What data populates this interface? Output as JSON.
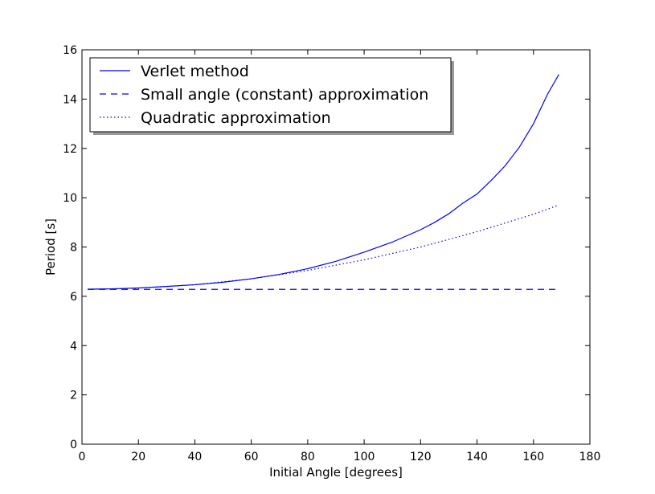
{
  "chart_data": {
    "type": "line",
    "title": "",
    "xlabel": "Initial Angle [degrees]",
    "ylabel": "Period [s]",
    "xlim": [
      0,
      180
    ],
    "ylim": [
      0,
      16
    ],
    "xticks": [
      0,
      20,
      40,
      60,
      80,
      100,
      120,
      140,
      160,
      180
    ],
    "yticks": [
      0,
      2,
      4,
      6,
      8,
      10,
      12,
      14,
      16
    ],
    "grid": false,
    "legend_position": "upper-left",
    "series": [
      {
        "name": "Verlet method",
        "style": "solid",
        "color": "#0000ff",
        "x": [
          2,
          10,
          20,
          30,
          40,
          50,
          60,
          70,
          80,
          90,
          100,
          110,
          120,
          125,
          130,
          135,
          140,
          145,
          150,
          155,
          160,
          165,
          169
        ],
        "y": [
          6.29,
          6.3,
          6.34,
          6.4,
          6.47,
          6.57,
          6.71,
          6.89,
          7.12,
          7.42,
          7.79,
          8.2,
          8.7,
          9.0,
          9.35,
          9.78,
          10.15,
          10.7,
          11.3,
          12.05,
          13.0,
          14.2,
          15.0
        ]
      },
      {
        "name": "Small angle (constant) approximation",
        "style": "dashed",
        "color": "#0000ff",
        "x": [
          2,
          169
        ],
        "y": [
          6.28,
          6.28
        ]
      },
      {
        "name": "Quadratic approximation",
        "style": "dotted",
        "color": "#0000ff",
        "x": [
          2,
          20,
          40,
          60,
          80,
          100,
          120,
          140,
          160,
          169
        ],
        "y": [
          6.28,
          6.33,
          6.47,
          6.71,
          7.05,
          7.48,
          8.0,
          8.62,
          9.33,
          9.7
        ]
      }
    ]
  }
}
